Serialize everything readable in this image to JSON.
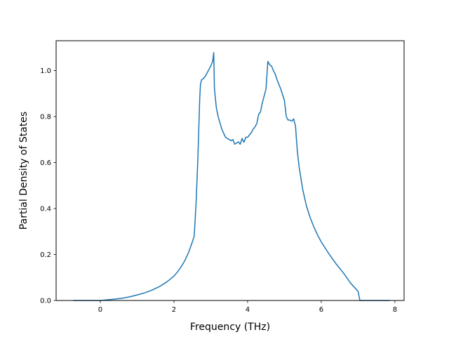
{
  "chart_data": {
    "type": "line",
    "title": "",
    "xlabel": "Frequency (THz)",
    "ylabel": "Partial Density of States",
    "xlim": [
      -1.2,
      8.25
    ],
    "ylim": [
      0.0,
      1.13
    ],
    "xticks": [
      0,
      2,
      4,
      6,
      8
    ],
    "xtick_labels": [
      "0",
      "2",
      "4",
      "6",
      "8"
    ],
    "yticks": [
      0.0,
      0.2,
      0.4,
      0.6,
      0.8,
      1.0
    ],
    "ytick_labels": [
      "0.0",
      "0.2",
      "0.4",
      "0.6",
      "0.8",
      "1.0"
    ],
    "grid": false,
    "legend": "none",
    "series": [
      {
        "color": "#1f77b4",
        "x": [
          -0.72,
          -0.4,
          -0.1,
          0.0,
          0.2,
          0.4,
          0.6,
          0.8,
          1.0,
          1.2,
          1.4,
          1.6,
          1.8,
          2.0,
          2.1,
          2.2,
          2.3,
          2.4,
          2.5,
          2.55,
          2.6,
          2.65,
          2.7,
          2.72,
          2.75,
          2.8,
          2.85,
          2.9,
          2.95,
          3.0,
          3.05,
          3.08,
          3.1,
          3.15,
          3.2,
          3.3,
          3.4,
          3.5,
          3.55,
          3.6,
          3.65,
          3.7,
          3.75,
          3.8,
          3.85,
          3.9,
          3.95,
          4.0,
          4.05,
          4.1,
          4.15,
          4.2,
          4.25,
          4.3,
          4.35,
          4.4,
          4.45,
          4.5,
          4.55,
          4.6,
          4.65,
          4.7,
          4.75,
          4.8,
          4.85,
          4.9,
          5.0,
          5.05,
          5.1,
          5.15,
          5.2,
          5.25,
          5.3,
          5.35,
          5.4,
          5.45,
          5.5,
          5.6,
          5.7,
          5.8,
          5.9,
          6.0,
          6.2,
          6.4,
          6.6,
          6.8,
          7.0,
          7.05,
          7.1,
          7.15,
          7.5,
          7.85
        ],
        "y": [
          0.0,
          0.0,
          0.0,
          0.0,
          0.003,
          0.006,
          0.01,
          0.016,
          0.024,
          0.033,
          0.045,
          0.06,
          0.08,
          0.106,
          0.125,
          0.148,
          0.175,
          0.21,
          0.255,
          0.28,
          0.42,
          0.62,
          0.88,
          0.94,
          0.96,
          0.965,
          0.975,
          0.99,
          1.005,
          1.02,
          1.04,
          1.078,
          0.92,
          0.84,
          0.8,
          0.745,
          0.71,
          0.7,
          0.695,
          0.7,
          0.68,
          0.685,
          0.69,
          0.68,
          0.705,
          0.688,
          0.71,
          0.71,
          0.72,
          0.73,
          0.745,
          0.755,
          0.77,
          0.81,
          0.82,
          0.86,
          0.89,
          0.92,
          1.04,
          1.025,
          1.02,
          1.0,
          0.985,
          0.96,
          0.94,
          0.92,
          0.87,
          0.8,
          0.785,
          0.785,
          0.78,
          0.79,
          0.76,
          0.65,
          0.58,
          0.53,
          0.48,
          0.41,
          0.36,
          0.32,
          0.285,
          0.255,
          0.205,
          0.16,
          0.12,
          0.075,
          0.04,
          0.0,
          0.0,
          0.0,
          0.0,
          0.0
        ]
      }
    ]
  }
}
